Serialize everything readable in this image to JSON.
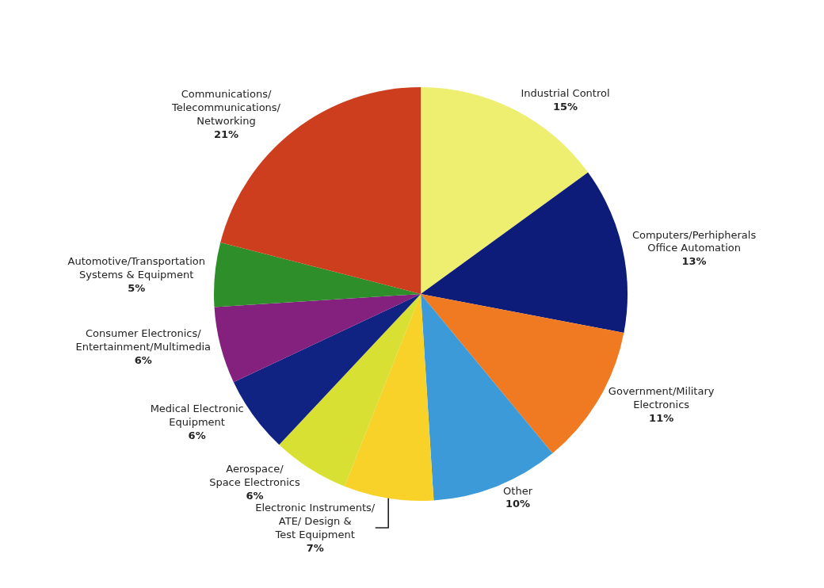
{
  "chart_data": {
    "type": "pie",
    "categories": [
      "Industrial Control",
      "Computers/Perhipherals\nOffice Automation",
      "Government/Military\nElectronics",
      "Other",
      "Electronic Instruments/\nATE/ Design &\nTest Equipment",
      "Aerospace/\nSpace Electronics",
      "Medical Electronic\nEquipment",
      "Consumer Electronics/\nEntertainment/Multimedia",
      "Automotive/Transportation\nSystems & Equipment",
      "Communications/\nTelecommunications/\nNetworking"
    ],
    "values": [
      15,
      13,
      11,
      10,
      7,
      6,
      6,
      6,
      5,
      21
    ],
    "value_labels": [
      "15%",
      "13%",
      "11%",
      "10%",
      "7%",
      "6%",
      "6%",
      "6%",
      "5%",
      "21%"
    ],
    "colors": [
      "#eeee70",
      "#0c1c78",
      "#f07a22",
      "#3c9ad8",
      "#f8d228",
      "#d8e034",
      "#102282",
      "#84207e",
      "#2e8e2a",
      "#cc3e1e"
    ],
    "legend": false
  }
}
